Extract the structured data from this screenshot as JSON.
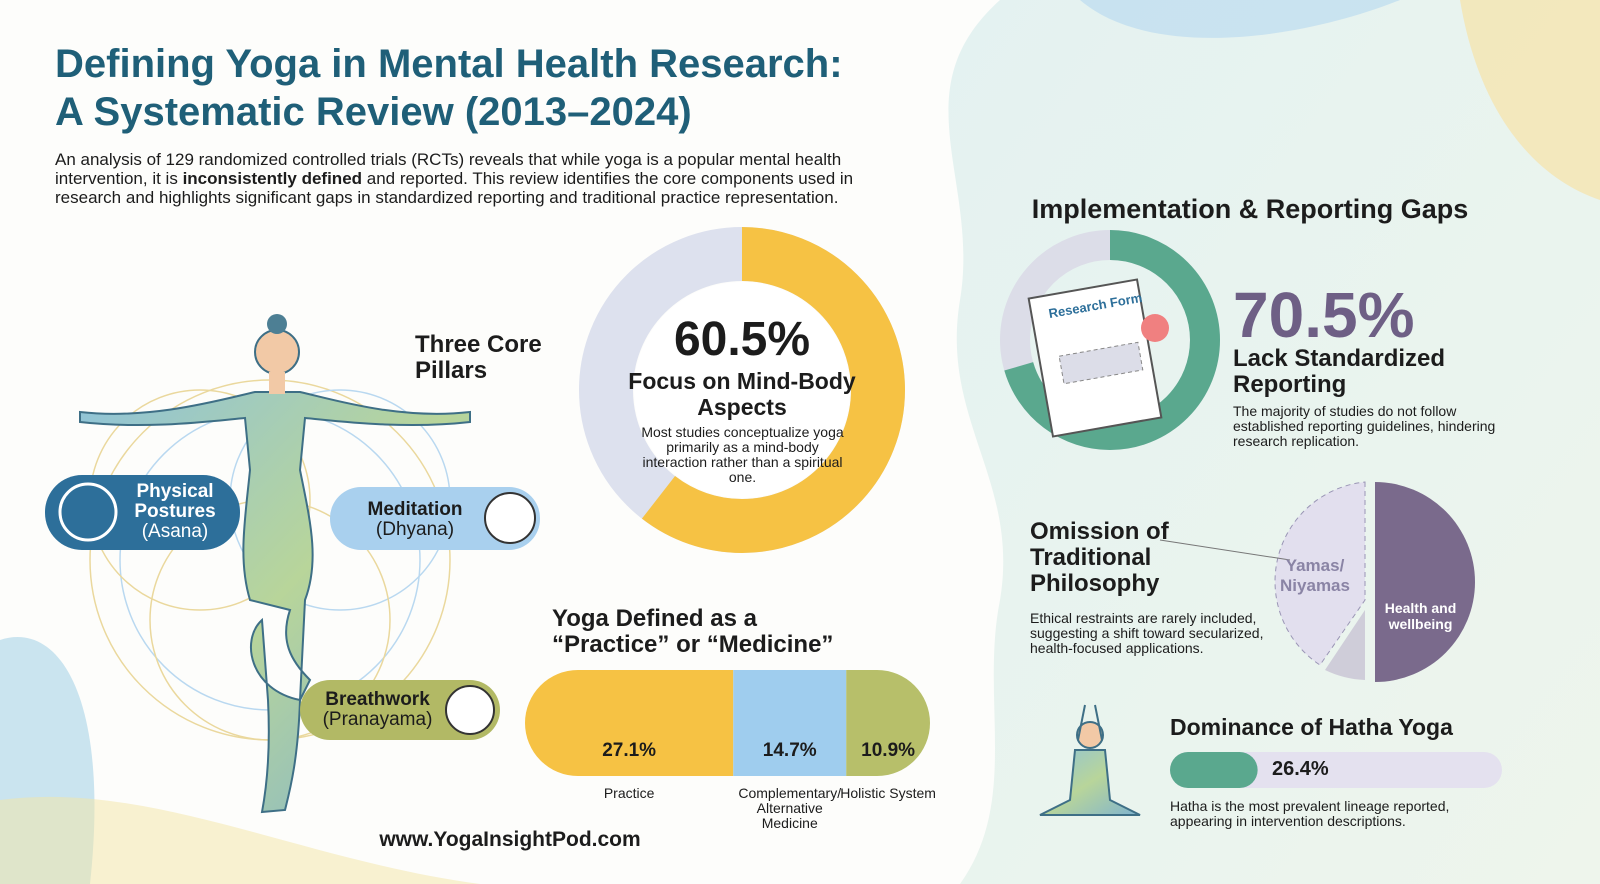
{
  "header": {
    "title": [
      "Defining Yoga in Mental Health Research:",
      "A Systematic Review (2013–2024)"
    ],
    "intro": [
      "An analysis of 129 randomized controlled trials (RCTs) reveals that while yoga is a popular mental health intervention, it is ",
      "inconsistently defined",
      " and reported. This review identifies the core components used in research and highlights significant gaps in standardized reporting and traditional practice representation."
    ]
  },
  "pillars": {
    "heading": "Three Core Pillars",
    "items": [
      {
        "name": "Physical Postures",
        "sanskrit": "(Asana)"
      },
      {
        "name": "Meditation",
        "sanskrit": "(Dhyana)"
      },
      {
        "name": "Breathwork",
        "sanskrit": "(Pranayama)"
      }
    ]
  },
  "mind_body": {
    "value": 60.5,
    "label": "60.5%",
    "title": "Focus on Mind-Body Aspects",
    "note": "Most studies conceptualize yoga primarily as a mind-body interaction rather than a spiritual one."
  },
  "definition": {
    "title": "Yoga Defined as a “Practice” or “Medicine”",
    "segments": [
      {
        "name": "Practice",
        "value": 27.1,
        "label": "27.1%",
        "color": "#f6c244"
      },
      {
        "name": "Complementary/ Alternative Medicine",
        "value": 14.7,
        "label": "14.7%",
        "color": "#9fcdee"
      },
      {
        "name": "Holistic System",
        "value": 10.9,
        "label": "10.9%",
        "color": "#b7bf6a"
      }
    ]
  },
  "gaps": {
    "heading": "Implementation & Reporting Gaps",
    "reporting": {
      "form_label": "Research Form",
      "value": 70.5,
      "label": "70.5%",
      "title": "Lack Standardized Reporting",
      "note": "The majority of studies do not follow established reporting guidelines, hindering research replication."
    },
    "philosophy": {
      "title": "Omission of Traditional Philosophy",
      "note": "Ethical restraints are rarely included, suggesting a shift toward secularized, health-focused applications.",
      "slice_left": "Yamas/ Niyamas",
      "slice_right": "Health and wellbeing"
    },
    "hatha": {
      "title": "Dominance of Hatha Yoga",
      "value": 26.4,
      "label": "26.4%",
      "note": "Hatha is the most prevalent lineage reported, appearing in intervention descriptions."
    }
  },
  "footer": {
    "url": "www.YogaInsightPod.com"
  }
}
